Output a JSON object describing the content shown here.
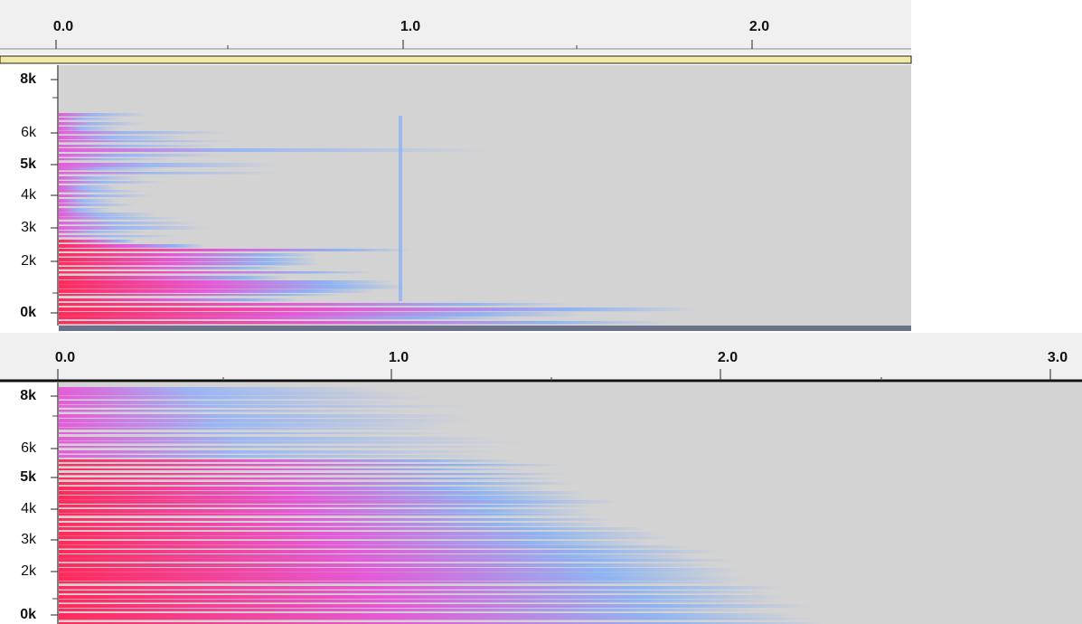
{
  "top_track": {
    "ruler_labels": [
      "0.0",
      "1.0",
      "2.0"
    ],
    "frequency_labels": [
      "8k",
      "6k",
      "5k",
      "4k",
      "3k",
      "2k",
      "0k"
    ]
  },
  "bottom_track": {
    "ruler_labels": [
      "0.0",
      "1.0",
      "2.0",
      "3.0"
    ],
    "frequency_labels": [
      "8k",
      "6k",
      "5k",
      "4k",
      "3k",
      "2k",
      "0k"
    ]
  }
}
